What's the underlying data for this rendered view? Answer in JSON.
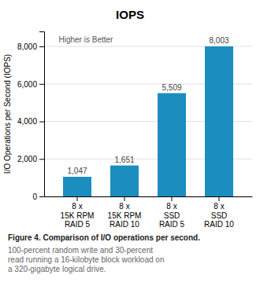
{
  "chart_data": {
    "type": "bar",
    "title": "IOPS",
    "categories": [
      "8 x\n15K RPM\nRAID 5",
      "8 x\n15K RPM\nRAID 10",
      "8 x\nSSD\nRAID 5",
      "8 x\nSSD\nRAID 10"
    ],
    "values": [
      1047,
      1651,
      5509,
      8003
    ],
    "value_labels": [
      "1,047",
      "1,651",
      "5,509",
      "8,003"
    ],
    "data_labels": true,
    "color": "#1b8dbf",
    "ylabel": "I/O Operations per Second (IOPS)",
    "ylim": [
      0,
      8800
    ],
    "yticks": [
      0,
      {
        "value": 2000,
        "label": "2,000"
      },
      {
        "value": 4000,
        "label": "4,000"
      },
      {
        "value": 6000,
        "label": "6,000"
      },
      {
        "value": 8000,
        "label": "8,000"
      }
    ],
    "grid": true,
    "annotations": [
      "Higher is Better",
      "Figure 4. Comparison of I/O operations per second.",
      "100-percent random write and 30-percent\nread running a 16-kilobyte block workload on\na 320-gigabyte logical drive."
    ]
  }
}
